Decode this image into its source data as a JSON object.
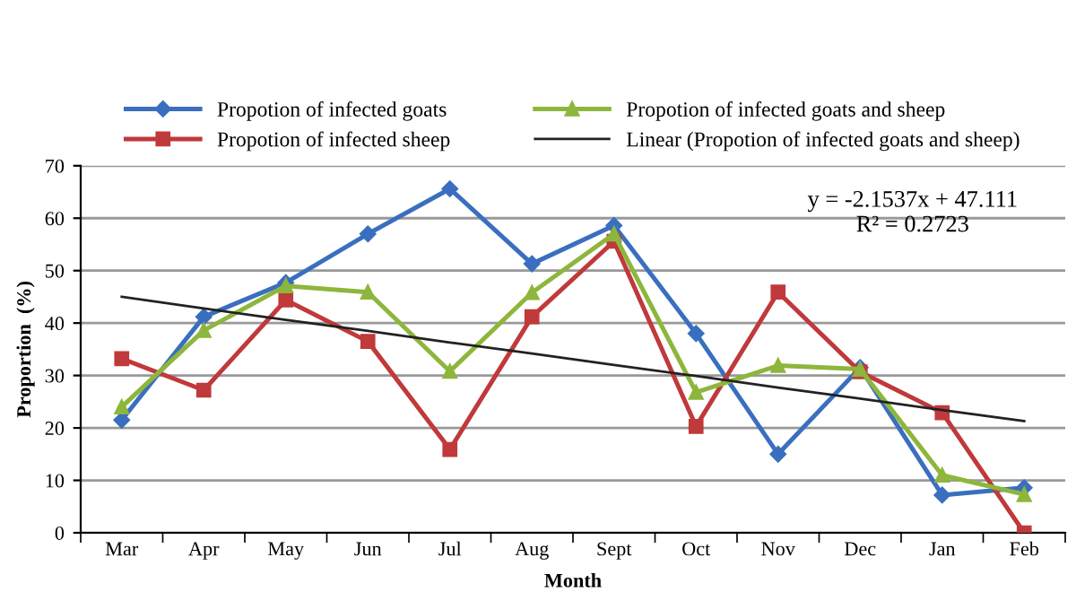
{
  "chart_data": {
    "type": "line",
    "xlabel": "Month",
    "ylabel": "Proportion  (%)",
    "categories": [
      "Mar",
      "Apr",
      "May",
      "Jun",
      "Jul",
      "Aug",
      "Sept",
      "Oct",
      "Nov",
      "Dec",
      "Jan",
      "Feb"
    ],
    "series": [
      {
        "name": "Propotion of infected goats",
        "color": "#3a6fbf",
        "marker": "diamond",
        "values": [
          21.5,
          41.2,
          47.7,
          57.0,
          65.6,
          51.3,
          58.6,
          38.0,
          15.0,
          31.5,
          7.2,
          8.6
        ]
      },
      {
        "name": "Propotion of infected sheep",
        "color": "#c0393b",
        "marker": "square",
        "values": [
          33.2,
          27.2,
          44.4,
          36.5,
          15.9,
          41.2,
          55.6,
          20.3,
          45.9,
          30.7,
          22.9,
          0
        ]
      },
      {
        "name": "Propotion of infected goats and sheep",
        "color": "#8db63c",
        "marker": "triangle",
        "values": [
          24.0,
          38.6,
          47.1,
          45.9,
          30.8,
          45.8,
          57.0,
          26.8,
          31.9,
          31.2,
          11.0,
          7.3
        ]
      },
      {
        "name": "Linear (Propotion of infected goats and sheep)",
        "color": "#222222",
        "marker": "none",
        "values": [
          45.0,
          42.8,
          40.6,
          38.5,
          36.3,
          34.2,
          32.0,
          29.9,
          27.7,
          25.6,
          23.4,
          21.3
        ]
      }
    ],
    "ylim": [
      0,
      70
    ],
    "yticks": [
      0,
      10,
      20,
      30,
      40,
      50,
      60,
      70
    ],
    "grid": "y",
    "legend": "top",
    "line_style": "solid",
    "annotations": [
      "y = -2.1537x + 47.111\nR² = 0.2723"
    ]
  }
}
